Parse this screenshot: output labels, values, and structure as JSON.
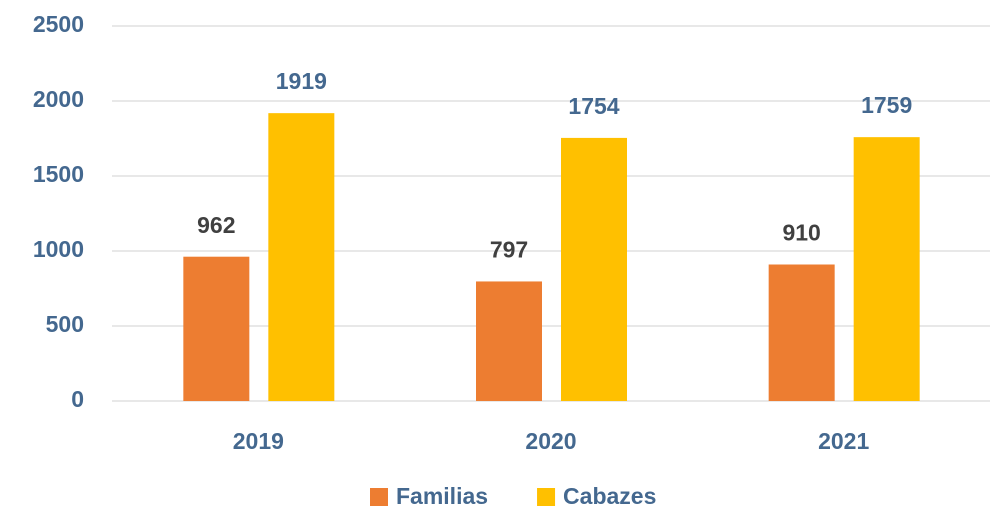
{
  "chart_data": {
    "type": "bar",
    "categories": [
      "2019",
      "2020",
      "2021"
    ],
    "series": [
      {
        "name": "Familias",
        "color": "#ED7D31",
        "label_color": "#404040",
        "values": [
          962,
          797,
          910
        ]
      },
      {
        "name": "Cabazes",
        "color": "#FFC000",
        "label_color": "#44688F",
        "values": [
          1919,
          1754,
          1759
        ]
      }
    ],
    "ylim": [
      0,
      2500
    ],
    "yticks": [
      0,
      500,
      1000,
      1500,
      2000,
      2500
    ],
    "grid": true,
    "legend": "bottom"
  }
}
